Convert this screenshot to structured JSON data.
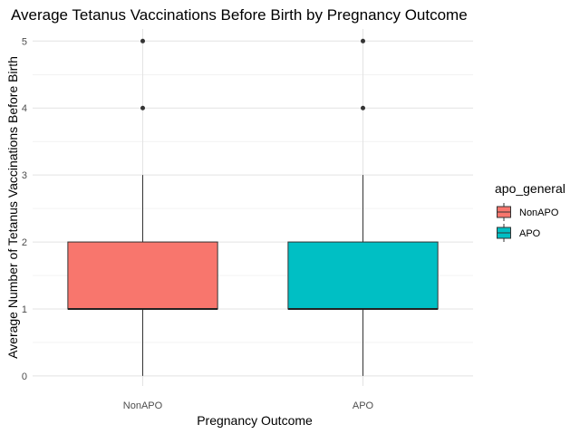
{
  "chart_data": {
    "type": "boxplot",
    "title": "Average Tetanus Vaccinations Before Birth by Pregnancy Outcome",
    "xlabel": "Pregnancy Outcome",
    "ylabel": "Average Number of Tetanus Vaccinations Before Birth",
    "categories": [
      "NonAPO",
      "APO"
    ],
    "ylim": [
      -0.15,
      5.18
    ],
    "yticks": [
      0,
      1,
      2,
      3,
      4,
      5
    ],
    "grid": true,
    "legend": {
      "title": "apo_general",
      "placement": "right",
      "entries": [
        {
          "label": "NonAPO",
          "color": "#F8766D"
        },
        {
          "label": "APO",
          "color": "#00BFC4"
        }
      ]
    },
    "series": [
      {
        "category": "NonAPO",
        "color": "#F8766D",
        "min": 0,
        "q1": 1,
        "median": 1,
        "q3": 2,
        "max": 3,
        "outliers": [
          4,
          5
        ]
      },
      {
        "category": "APO",
        "color": "#00BFC4",
        "min": 0,
        "q1": 1,
        "median": 1,
        "q3": 2,
        "max": 3,
        "outliers": [
          4,
          5
        ]
      }
    ]
  }
}
